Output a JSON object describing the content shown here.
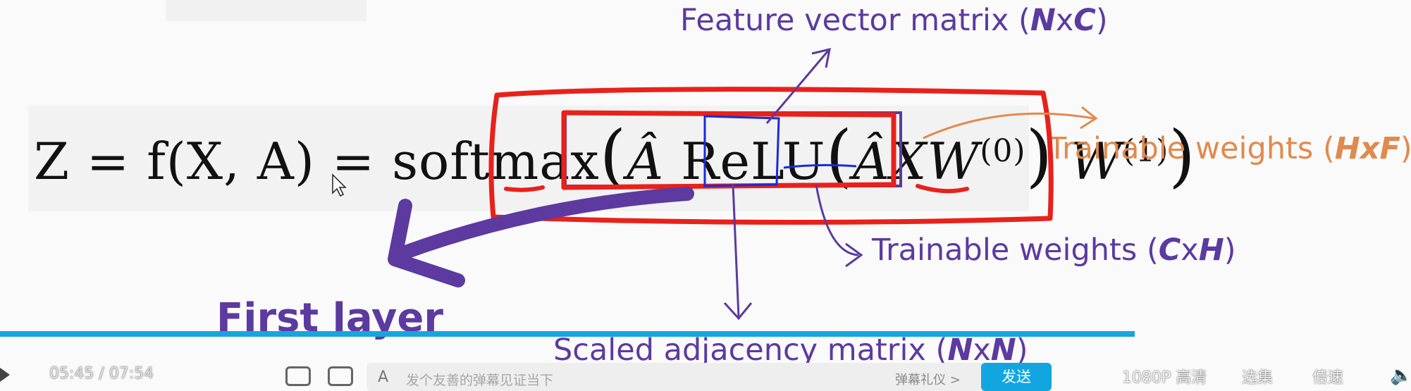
{
  "slide": {
    "equation": {
      "lhs": "Z = f(X, A) = softmax",
      "paren_open": "(",
      "a_hat": "Â",
      "relu": "ReLU",
      "a_hat_x": "ÂX",
      "w0": "W",
      "w0_sup": "(0)",
      "w1": "W",
      "w1_sup": "(1)",
      "paren_close": ")"
    },
    "annotations": {
      "feature_prefix": "Feature vector matrix (",
      "feature_var": "N",
      "feature_mid": "x",
      "feature_var2": "C",
      "feature_suffix": ")",
      "train1_prefix": "Trainable weights (",
      "train1_var": "HxF",
      "train1_suffix": ")",
      "train0_prefix": "Trainable weights (",
      "train0_var": "C",
      "train0_mid": "x",
      "train0_var2": "H",
      "train0_suffix": ")",
      "scaled_prefix": "Scaled adjacency matrix (",
      "scaled_var": "N",
      "scaled_mid": "x",
      "scaled_var2": "N",
      "scaled_suffix": ")",
      "first_layer": "First layer"
    },
    "colors": {
      "purple": "#5c3aa0",
      "orange": "#e08a4e",
      "red_marker": "#e8211b",
      "blue_marker": "#1a2bd6",
      "progress": "#15a6de"
    }
  },
  "player": {
    "time_current": "05:45",
    "time_separator": " / ",
    "time_total": "07:54",
    "danmaku_placeholder": "发个友善的弹幕见证当下",
    "danmaku_etiquette": "弹幕礼仪 >",
    "send_label": "发送",
    "quality_label": "1080P 高清",
    "episodes_label": "选集",
    "speed_label": "倍速",
    "icons": [
      "play-icon",
      "danmaku-toggle-icon",
      "danmaku-settings-icon",
      "danmaku-style-icon",
      "volume-icon"
    ]
  }
}
